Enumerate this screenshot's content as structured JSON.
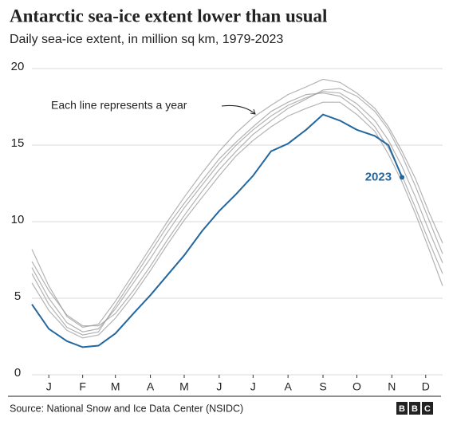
{
  "chart_data": {
    "type": "line",
    "title": "Antarctic sea-ice extent lower than usual",
    "subtitle": "Daily sea-ice extent, in million sq km, 1979-2023",
    "annotation": "Each line represents a year",
    "source": "Source: National Snow and Ice Data Center (NSIDC)",
    "logo": "BBC",
    "x": [
      1,
      16,
      32,
      46,
      60,
      75,
      91,
      106,
      121,
      136,
      152,
      167,
      182,
      197,
      213,
      228,
      244,
      259,
      274,
      289,
      305,
      317,
      329,
      341,
      353,
      365
    ],
    "xlim": [
      1,
      365
    ],
    "xticks": [
      {
        "value": 16,
        "label": "J"
      },
      {
        "value": 46,
        "label": "F"
      },
      {
        "value": 75,
        "label": "M"
      },
      {
        "value": 106,
        "label": "A"
      },
      {
        "value": 136,
        "label": "M"
      },
      {
        "value": 167,
        "label": "J"
      },
      {
        "value": 197,
        "label": "J"
      },
      {
        "value": 228,
        "label": "A"
      },
      {
        "value": 259,
        "label": "S"
      },
      {
        "value": 289,
        "label": "O"
      },
      {
        "value": 320,
        "label": "N"
      },
      {
        "value": 350,
        "label": "D"
      }
    ],
    "ylim": [
      0,
      20
    ],
    "yticks": [
      0,
      5,
      10,
      15,
      20
    ],
    "grid": true,
    "series": [
      {
        "color": "#9a9a9a",
        "values": [
          8.2,
          5.8,
          3.8,
          3.1,
          3.3,
          4.8,
          6.6,
          8.3,
          10.0,
          11.6,
          13.2,
          14.6,
          15.8,
          16.8,
          17.6,
          18.3,
          18.8,
          19.3,
          19.1,
          18.4,
          17.4,
          16.2,
          14.6,
          12.8,
          10.6,
          8.6
        ]
      },
      {
        "color": "#9a9a9a",
        "values": [
          6.0,
          4.2,
          2.9,
          2.4,
          2.6,
          3.7,
          5.2,
          6.8,
          8.5,
          10.1,
          11.6,
          13.0,
          14.3,
          15.3,
          16.2,
          16.9,
          17.4,
          17.8,
          17.8,
          17.0,
          15.9,
          14.4,
          12.6,
          10.5,
          8.2,
          5.8
        ]
      },
      {
        "color": "#9a9a9a",
        "values": [
          7.0,
          5.0,
          3.4,
          2.8,
          3.0,
          4.3,
          6.0,
          7.6,
          9.3,
          10.9,
          12.4,
          13.8,
          15.0,
          16.0,
          16.9,
          17.6,
          18.1,
          18.5,
          18.4,
          17.7,
          16.6,
          15.3,
          13.6,
          11.6,
          9.4,
          7.3
        ]
      },
      {
        "color": "#9a9a9a",
        "values": [
          7.4,
          5.5,
          3.9,
          3.2,
          3.2,
          4.0,
          5.5,
          7.1,
          8.8,
          10.4,
          12.0,
          13.4,
          14.6,
          15.7,
          16.6,
          17.4,
          18.0,
          18.6,
          18.7,
          18.2,
          17.2,
          16.0,
          14.3,
          12.3,
          10.1,
          7.9
        ]
      },
      {
        "color": "#9a9a9a",
        "values": [
          6.6,
          4.6,
          3.1,
          2.6,
          2.8,
          4.5,
          6.3,
          8.0,
          9.7,
          11.2,
          12.7,
          14.1,
          15.2,
          16.2,
          17.2,
          17.8,
          18.3,
          18.4,
          18.2,
          17.4,
          16.2,
          14.8,
          13.0,
          10.9,
          8.7,
          6.6
        ]
      },
      {
        "name": "2023",
        "color": "#23679f",
        "marker_last": true,
        "values": [
          4.6,
          3.0,
          2.2,
          1.8,
          1.9,
          2.7,
          4.0,
          5.2,
          6.5,
          7.8,
          9.4,
          10.7,
          11.8,
          13.0,
          14.6,
          15.1,
          16.0,
          17.0,
          16.6,
          16.0,
          15.6,
          15.0,
          12.9,
          null,
          null,
          null
        ]
      }
    ]
  }
}
